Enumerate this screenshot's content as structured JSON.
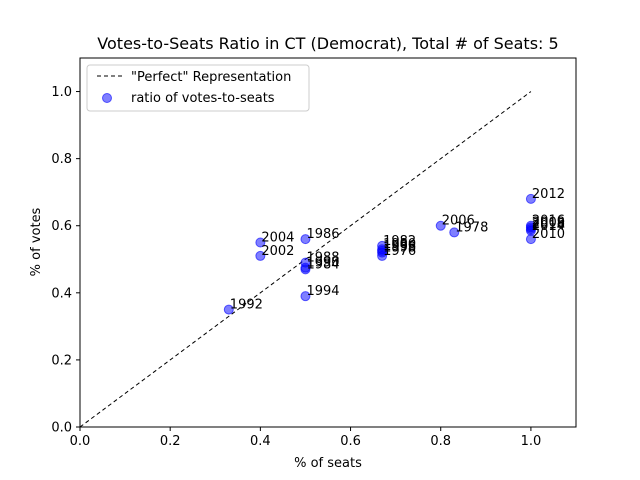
{
  "chart_data": {
    "type": "scatter",
    "title": "Votes-to-Seats Ratio in CT (Democrat), Total # of Seats: 5",
    "xlabel": "% of seats",
    "ylabel": "% of votes",
    "xlim": [
      0,
      1.1
    ],
    "ylim": [
      0,
      1.1
    ],
    "xticks": [
      "0.0",
      "0.2",
      "0.4",
      "0.6",
      "0.8",
      "1.0"
    ],
    "yticks": [
      "0.0",
      "0.2",
      "0.4",
      "0.6",
      "0.8",
      "1.0"
    ],
    "grid": false,
    "legend_position": "top-left",
    "reference_line": {
      "name": "\"Perfect\" Representation",
      "x": [
        0,
        1
      ],
      "y": [
        0,
        1
      ],
      "style": "dashed",
      "color": "#000000"
    },
    "series": [
      {
        "name": "ratio of votes-to-seats",
        "color": "#0000ff",
        "points": [
          {
            "label": "1978",
            "x": 0.83,
            "y": 0.58
          },
          {
            "label": "1986",
            "x": 0.5,
            "y": 0.56
          },
          {
            "label": "1988",
            "x": 0.5,
            "y": 0.49
          },
          {
            "label": "1984",
            "x": 0.5,
            "y": 0.47
          },
          {
            "label": "1990",
            "x": 0.5,
            "y": 0.475
          },
          {
            "label": "1992",
            "x": 0.33,
            "y": 0.35
          },
          {
            "label": "1994",
            "x": 0.5,
            "y": 0.39
          },
          {
            "label": "1982",
            "x": 0.67,
            "y": 0.54
          },
          {
            "label": "1980",
            "x": 0.67,
            "y": 0.53
          },
          {
            "label": "1996",
            "x": 0.67,
            "y": 0.525
          },
          {
            "label": "1998",
            "x": 0.67,
            "y": 0.52
          },
          {
            "label": "1976",
            "x": 0.67,
            "y": 0.51
          },
          {
            "label": "2002",
            "x": 0.4,
            "y": 0.51
          },
          {
            "label": "2004",
            "x": 0.4,
            "y": 0.55
          },
          {
            "label": "2006",
            "x": 0.8,
            "y": 0.6
          },
          {
            "label": "2012",
            "x": 1.0,
            "y": 0.68
          },
          {
            "label": "2016",
            "x": 1.0,
            "y": 0.6
          },
          {
            "label": "2008",
            "x": 1.0,
            "y": 0.595
          },
          {
            "label": "2018",
            "x": 1.0,
            "y": 0.59
          },
          {
            "label": "2014",
            "x": 1.0,
            "y": 0.585
          },
          {
            "label": "2010",
            "x": 1.0,
            "y": 0.56
          }
        ]
      }
    ]
  }
}
